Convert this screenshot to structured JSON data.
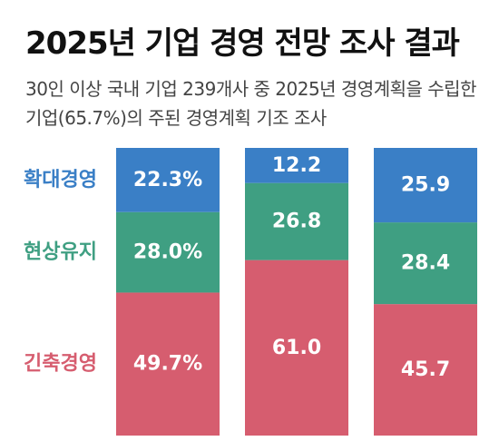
{
  "title": "2025년 기업 경영 전망 조사 결과",
  "subtitle": "30인 이상 국내 기업 239개사 중 2025년 경영계획을 수립한 기업(65.7%)의 주된 경영계획 기조 조사",
  "colors": {
    "expand": "#3a7fc6",
    "maintain": "#3f9f82",
    "contract": "#d65d6f"
  },
  "chart_data": {
    "type": "bar",
    "stacked": true,
    "categories": [
      "",
      "",
      ""
    ],
    "series": [
      {
        "name": "긴축경영",
        "values": [
          49.7,
          61.0,
          45.7
        ],
        "labels": [
          "49.7%",
          "61.0",
          "45.7"
        ],
        "color": "#d65d6f"
      },
      {
        "name": "현상유지",
        "values": [
          28.0,
          26.8,
          28.4
        ],
        "labels": [
          "28.0%",
          "26.8",
          "28.4"
        ],
        "color": "#3f9f82"
      },
      {
        "name": "확대경영",
        "values": [
          22.3,
          12.2,
          25.9
        ],
        "labels": [
          "22.3%",
          "12.2",
          "25.9"
        ],
        "color": "#3a7fc6"
      }
    ],
    "ylim": [
      0,
      100
    ],
    "legend": "left"
  }
}
